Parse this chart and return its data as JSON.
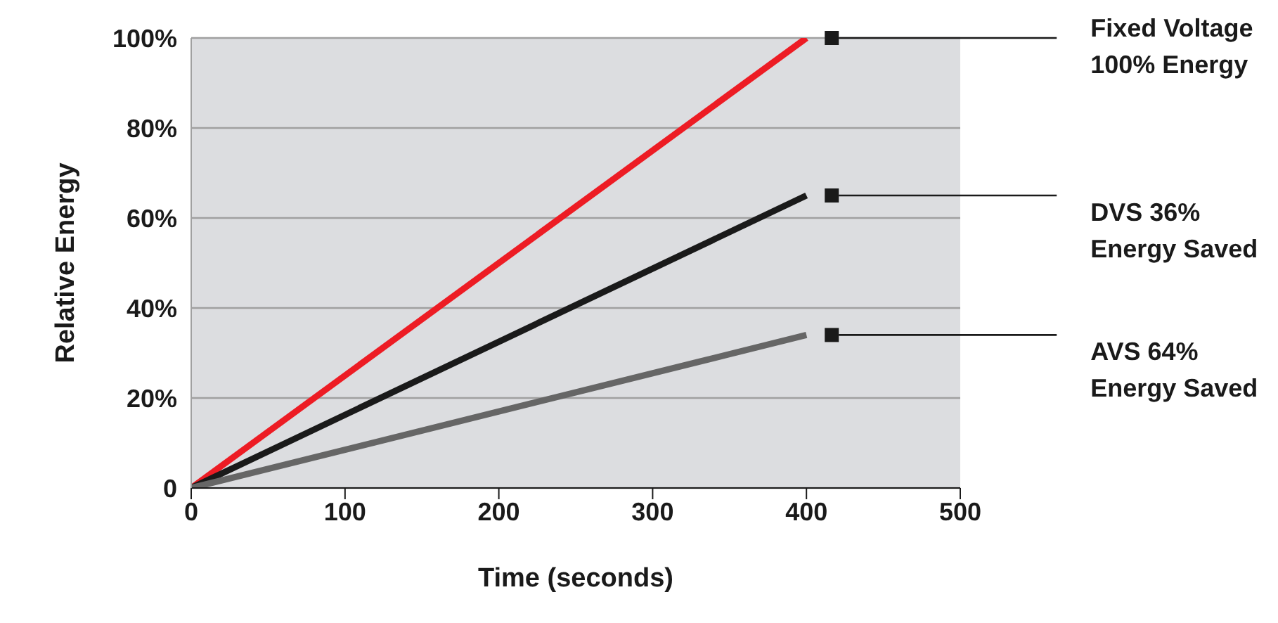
{
  "chart_data": {
    "type": "line",
    "xlabel": "Time (seconds)",
    "ylabel": "Relative Energy",
    "x": [
      0,
      400
    ],
    "series": [
      {
        "color": "#ed1c24",
        "values": [
          0,
          100
        ]
      },
      {
        "color": "#1a1a1a",
        "values": [
          0,
          65
        ]
      },
      {
        "color": "#666666",
        "values": [
          0,
          34
        ]
      }
    ],
    "xlim": [
      0,
      500
    ],
    "xticks": [
      0,
      100,
      200,
      300,
      400,
      500
    ],
    "ylim": [
      0,
      100
    ],
    "yticks": [
      0,
      {
        "value": 20,
        "label": "20%"
      },
      {
        "value": 40,
        "label": "40%"
      },
      {
        "value": 60,
        "label": "60%"
      },
      {
        "value": 80,
        "label": "80%"
      },
      {
        "value": 100,
        "label": "100%"
      }
    ],
    "grid": "y",
    "legend": false,
    "marker": "none",
    "line_style": "solid",
    "annotations": [
      "Fixed Voltage\n100% Energy",
      "DVS 36%\nEnergy Saved",
      "AVS 64%\nEnergy Saved"
    ]
  }
}
